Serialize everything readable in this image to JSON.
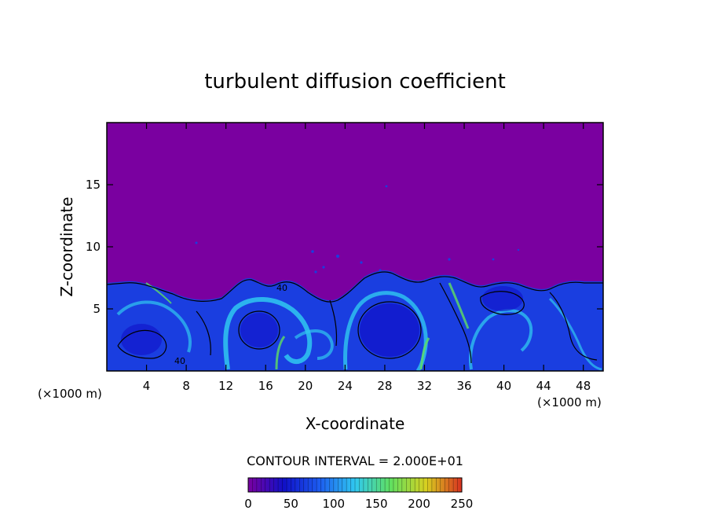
{
  "chart_data": {
    "type": "heatmap",
    "title": "turbulent diffusion coefficient",
    "xlabel": "X-coordinate",
    "ylabel": "Z-coordinate",
    "x_unit_left": "(×1000 m)",
    "x_unit_right": "(×1000 m)",
    "xlim": [
      0,
      50
    ],
    "ylim": [
      0,
      20
    ],
    "x_ticks": [
      "4",
      "8",
      "12",
      "16",
      "20",
      "24",
      "28",
      "32",
      "36",
      "40",
      "44",
      "48"
    ],
    "x_tick_values": [
      4,
      8,
      12,
      16,
      20,
      24,
      28,
      32,
      36,
      40,
      44,
      48
    ],
    "y_ticks": [
      "5",
      "10",
      "15"
    ],
    "y_tick_values": [
      5,
      10,
      15
    ],
    "contour_interval_text": "CONTOUR INTERVAL = 2.000E+01",
    "contour_labels": [
      "40",
      "40"
    ],
    "colorbar": {
      "min": 0,
      "max": 250,
      "ticks": [
        "0",
        "50",
        "100",
        "150",
        "200",
        "250"
      ],
      "tick_values": [
        0,
        50,
        100,
        150,
        200,
        250
      ],
      "colors": [
        "#7a00a0",
        "#1010c8",
        "#1c5cf0",
        "#30c8f0",
        "#60e060",
        "#d8d020",
        "#d83020"
      ]
    },
    "background_color": "#7a00a0",
    "turbulent_layer_top_km": 7
  }
}
